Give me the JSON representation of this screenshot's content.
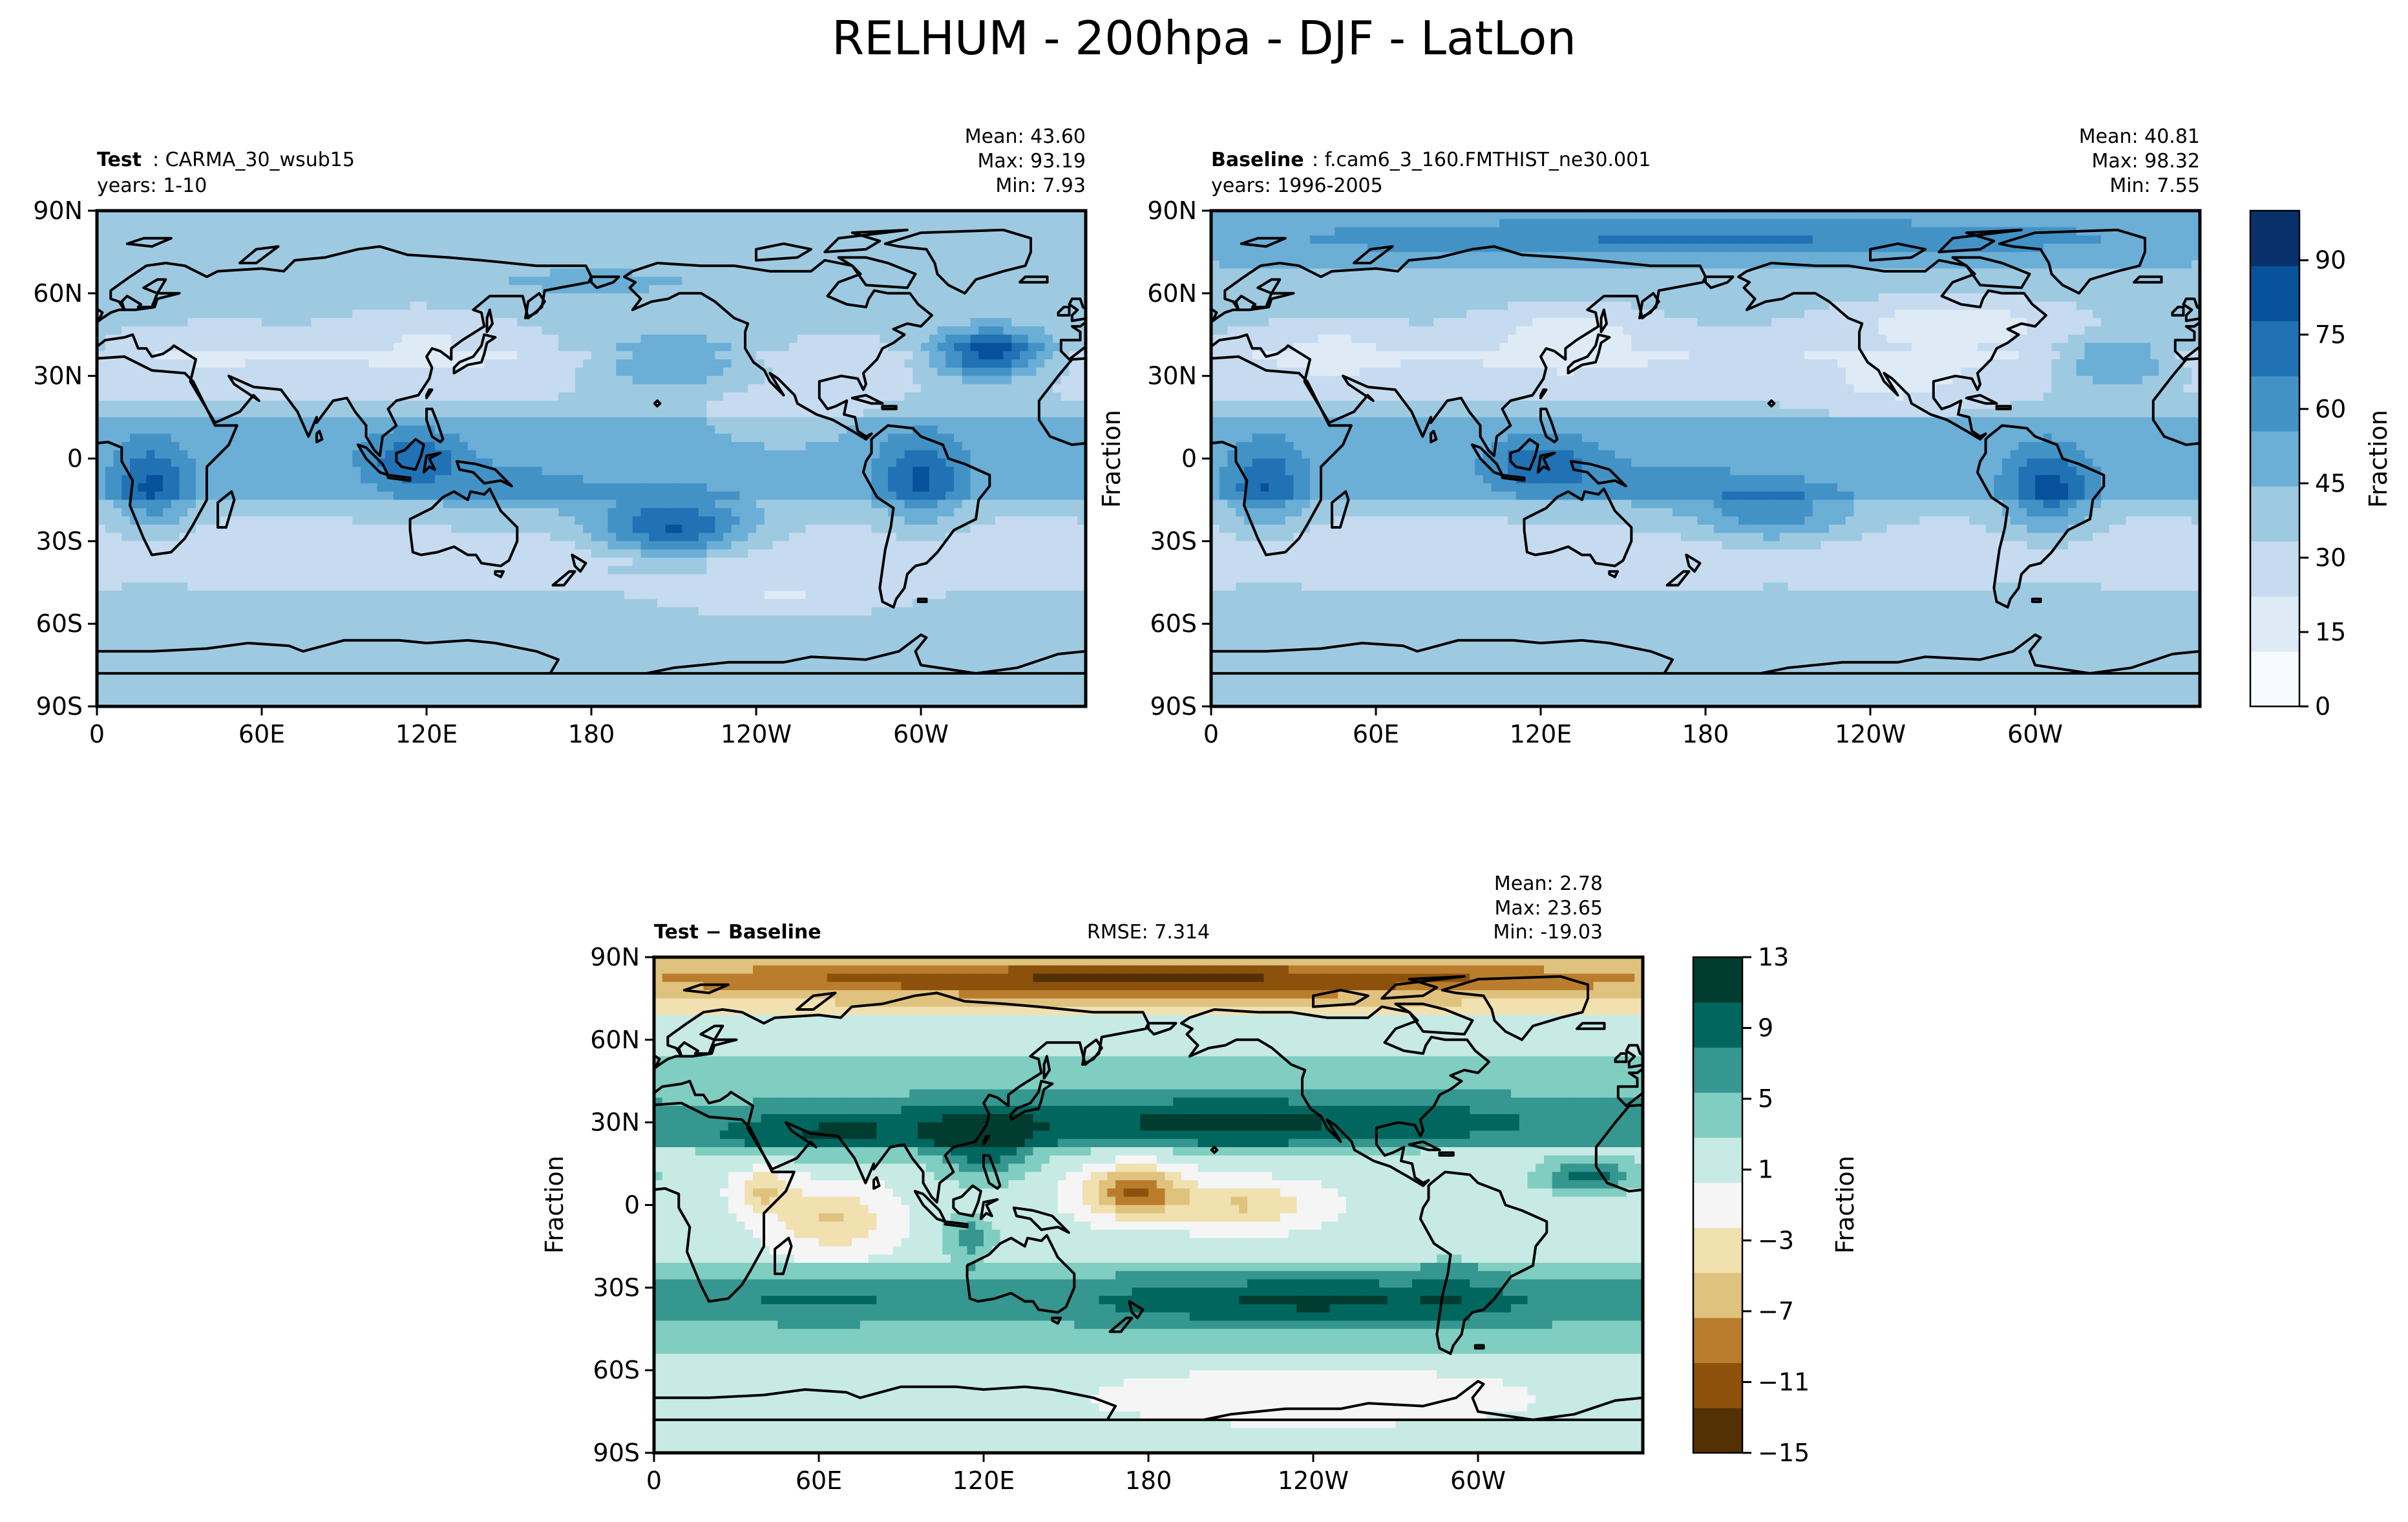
{
  "figure": {
    "title": "RELHUM - 200hpa - DJF - LatLon"
  },
  "chart_data": [
    {
      "type": "heatmap",
      "id": "test",
      "label_bold": "Test",
      "label_rest": ": CARMA_30_wsub15",
      "years": "years: 1-10",
      "stats": {
        "mean": "Mean: 43.60",
        "max": "Max: 93.19",
        "min": "Min:  7.93"
      },
      "xticks": [
        "0",
        "60E",
        "120E",
        "180",
        "120W",
        "60W"
      ],
      "yticks": [
        "90N",
        "60N",
        "30N",
        "0",
        "30S",
        "60S",
        "90S"
      ],
      "xlim": [
        0,
        360
      ],
      "ylim": [
        -90,
        90
      ],
      "ylabel": "",
      "features": [
        {
          "lon": 20,
          "lat": -10,
          "value": 80,
          "slon": 14,
          "slat": 16
        },
        {
          "lon": 115,
          "lat": 0,
          "value": 75,
          "slon": 18,
          "slat": 10
        },
        {
          "lon": 150,
          "lat": -12,
          "value": 60,
          "slon": 40,
          "slat": 12
        },
        {
          "lon": 210,
          "lat": -25,
          "value": 78,
          "slon": 28,
          "slat": 11
        },
        {
          "lon": 300,
          "lat": -8,
          "value": 80,
          "slon": 16,
          "slat": 16
        },
        {
          "lon": 325,
          "lat": 38,
          "value": 80,
          "slon": 22,
          "slat": 9
        },
        {
          "lon": 210,
          "lat": 35,
          "value": 55,
          "slon": 30,
          "slat": 10
        },
        {
          "lon": 120,
          "lat": 45,
          "value": 22,
          "slon": 30,
          "slat": 12
        },
        {
          "lon": 45,
          "lat": 40,
          "value": 25,
          "slon": 22,
          "slat": 10
        },
        {
          "lon": 250,
          "lat": 15,
          "value": 25,
          "slon": 25,
          "slat": 10
        },
        {
          "lon": 250,
          "lat": -50,
          "value": 22,
          "slon": 40,
          "slat": 8
        },
        {
          "lon": 180,
          "lat": 60,
          "value": 45,
          "slon": 40,
          "slat": 10
        }
      ]
    },
    {
      "type": "heatmap",
      "id": "baseline",
      "label_bold": "Baseline",
      "label_rest": ": f.cam6_3_160.FMTHIST_ne30.001",
      "years": "years: 1996-2005",
      "stats": {
        "mean": "Mean: 40.81",
        "max": "Max: 98.32",
        "min": "Min:  7.55"
      },
      "xticks": [
        "0",
        "60E",
        "120E",
        "180",
        "120W",
        "60W"
      ],
      "yticks": [
        "90N",
        "60N",
        "30N",
        "0",
        "30S",
        "60S",
        "90S"
      ],
      "xlim": [
        0,
        360
      ],
      "ylim": [
        -90,
        90
      ],
      "ylabel": "Fraction",
      "features": [
        {
          "lon": 20,
          "lat": -10,
          "value": 78,
          "slon": 14,
          "slat": 16
        },
        {
          "lon": 120,
          "lat": -2,
          "value": 75,
          "slon": 20,
          "slat": 10
        },
        {
          "lon": 160,
          "lat": -10,
          "value": 58,
          "slon": 40,
          "slat": 12
        },
        {
          "lon": 205,
          "lat": -20,
          "value": 62,
          "slon": 28,
          "slat": 11
        },
        {
          "lon": 305,
          "lat": -12,
          "value": 82,
          "slon": 16,
          "slat": 16
        },
        {
          "lon": 330,
          "lat": 35,
          "value": 55,
          "slon": 22,
          "slat": 9
        },
        {
          "lon": 180,
          "lat": 80,
          "value": 68,
          "slon": 180,
          "slat": 8
        },
        {
          "lon": 130,
          "lat": 45,
          "value": 15,
          "slon": 30,
          "slat": 12
        },
        {
          "lon": 45,
          "lat": 40,
          "value": 18,
          "slon": 22,
          "slat": 10
        },
        {
          "lon": 250,
          "lat": 25,
          "value": 20,
          "slon": 30,
          "slat": 10
        },
        {
          "lon": 270,
          "lat": 50,
          "value": 15,
          "slon": 40,
          "slat": 10
        }
      ],
      "colorbar": {
        "label": "Fraction",
        "ticks": [
          "0",
          "15",
          "30",
          "45",
          "60",
          "75",
          "90"
        ],
        "tick_values": [
          0,
          15,
          30,
          45,
          60,
          75,
          90
        ],
        "range": [
          0,
          100
        ],
        "colors": [
          "#f7fbff",
          "#deebf7",
          "#c6dbef",
          "#9ecae1",
          "#6baed6",
          "#4292c6",
          "#2171b5",
          "#08519c",
          "#08306b"
        ]
      }
    },
    {
      "type": "heatmap",
      "id": "difference",
      "label_bold": "Test − Baseline",
      "rmse": "RMSE: 7.314",
      "stats": {
        "mean": "Mean:  2.78",
        "max": "Max: 23.65",
        "min": "Min: -19.03"
      },
      "xticks": [
        "0",
        "60E",
        "120E",
        "180",
        "120W",
        "60W"
      ],
      "yticks": [
        "90N",
        "60N",
        "30N",
        "0",
        "30S",
        "60S",
        "90S"
      ],
      "xlim": [
        0,
        360
      ],
      "ylim": [
        -90,
        90
      ],
      "ylabel": "Fraction",
      "features": [
        {
          "lon": 180,
          "lat": 82,
          "value": -13,
          "slon": 180,
          "slat": 6
        },
        {
          "lon": 210,
          "lat": 30,
          "value": 11,
          "slon": 140,
          "slat": 10
        },
        {
          "lon": 60,
          "lat": 25,
          "value": 9,
          "slon": 45,
          "slat": 9
        },
        {
          "lon": 120,
          "lat": 20,
          "value": 8,
          "slon": 18,
          "slat": 12
        },
        {
          "lon": 240,
          "lat": -35,
          "value": 11,
          "slon": 100,
          "slat": 9
        },
        {
          "lon": 60,
          "lat": -35,
          "value": 8,
          "slon": 50,
          "slat": 8
        },
        {
          "lon": 175,
          "lat": 5,
          "value": -10,
          "slon": 18,
          "slat": 9
        },
        {
          "lon": 215,
          "lat": 0,
          "value": -5,
          "slon": 25,
          "slat": 8
        },
        {
          "lon": 65,
          "lat": -5,
          "value": -5,
          "slon": 20,
          "slat": 12
        },
        {
          "lon": 40,
          "lat": 5,
          "value": -5,
          "slon": 10,
          "slat": 8
        },
        {
          "lon": 115,
          "lat": -12,
          "value": 7,
          "slon": 10,
          "slat": 8
        },
        {
          "lon": 290,
          "lat": -25,
          "value": 6,
          "slon": 10,
          "slat": 15
        },
        {
          "lon": 340,
          "lat": 10,
          "value": 9,
          "slon": 18,
          "slat": 6
        },
        {
          "lon": 240,
          "lat": -70,
          "value": -2,
          "slon": 80,
          "slat": 10
        }
      ],
      "colorbar": {
        "label": "Fraction",
        "ticks": [
          "13",
          "9",
          "5",
          "1",
          "−3",
          "−7",
          "−11",
          "−15"
        ],
        "tick_values": [
          13,
          9,
          5,
          1,
          -3,
          -7,
          -11,
          -15
        ],
        "range": [
          -15,
          13
        ],
        "colors": [
          "#543005",
          "#8c510a",
          "#b97d2d",
          "#dfc27d",
          "#f1e0b0",
          "#f5f5f5",
          "#c7eae5",
          "#80cdc1",
          "#35978f",
          "#01665e",
          "#003c30"
        ]
      }
    }
  ]
}
